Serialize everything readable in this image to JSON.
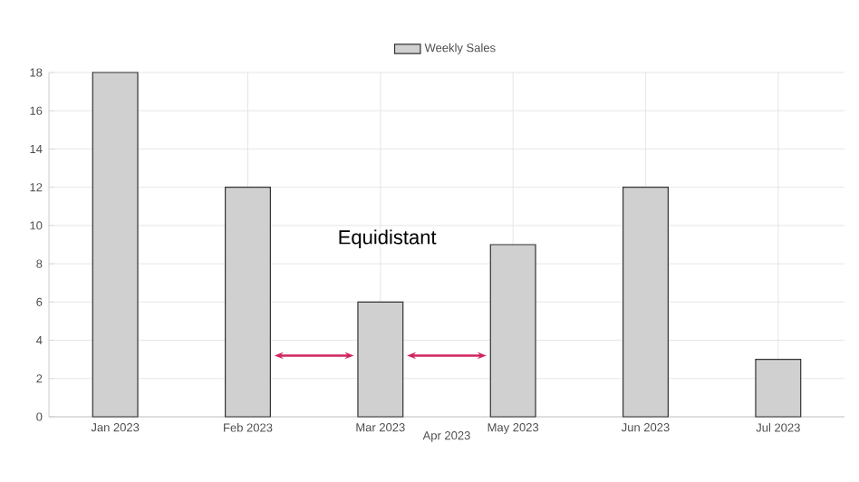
{
  "chart_data": {
    "type": "bar",
    "categories": [
      "Jan 2023",
      "Feb 2023",
      "Mar 2023",
      "May 2023",
      "Jun 2023",
      "Jul 2023"
    ],
    "series": [
      {
        "name": "Weekly Sales",
        "color": "#d0d0d0",
        "values": [
          18,
          12,
          6,
          9,
          12,
          3
        ]
      }
    ],
    "ylim": [
      0,
      18
    ],
    "yticks": [
      0,
      2,
      4,
      6,
      8,
      10,
      12,
      14,
      16,
      18
    ],
    "grid": true,
    "legend": "top",
    "annotations": [
      "Equidistant",
      "Apr 2023"
    ]
  }
}
